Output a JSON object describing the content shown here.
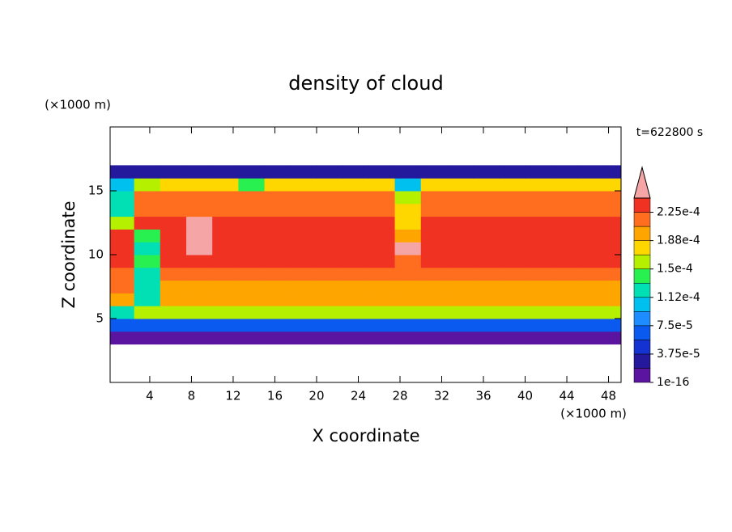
{
  "chart_data": {
    "type": "contour",
    "title": "density of cloud",
    "xlabel": "X coordinate",
    "ylabel": "Z coordinate",
    "xunit": "(×1000 m)",
    "yunit": "(×1000 m)",
    "annotation": "t=622800 s",
    "xlim": [
      0.2,
      49.2
    ],
    "ylim": [
      0,
      20
    ],
    "xticks": [
      4,
      8,
      12,
      16,
      20,
      24,
      28,
      32,
      36,
      40,
      44,
      48
    ],
    "yticks": [
      5,
      10,
      15
    ],
    "x": [
      1.25,
      3.75,
      6.25,
      8.75,
      11.25,
      13.75,
      16.25,
      18.75,
      21.25,
      23.75,
      26.25,
      28.75,
      31.25,
      33.75,
      36.25,
      38.75,
      41.25,
      43.75,
      46.25,
      48.75
    ],
    "z": [
      3.5,
      4.5,
      5.5,
      6.5,
      7.5,
      8.5,
      9.5,
      10.5,
      11.5,
      12.5,
      13.5,
      14.5,
      15.5,
      16.5
    ],
    "values": [
      [
        1e-05,
        1e-05,
        1e-05,
        1e-05,
        1e-05,
        1e-05,
        1e-05,
        1e-05,
        1e-05,
        1e-05,
        1e-05,
        1e-05,
        1e-05,
        1e-05,
        1e-05,
        1e-05,
        1e-05,
        1e-05,
        1e-05,
        1e-05
      ],
      [
        6e-05,
        6e-05,
        6e-05,
        6e-05,
        6e-05,
        6e-05,
        6e-05,
        6e-05,
        6e-05,
        6e-05,
        6e-05,
        6e-05,
        6e-05,
        6e-05,
        6e-05,
        6e-05,
        6e-05,
        6e-05,
        6e-05,
        6e-05
      ],
      [
        0.00013,
        0.000155,
        0.000155,
        0.000155,
        0.000155,
        0.000155,
        0.000155,
        0.000155,
        0.000155,
        0.000155,
        0.000155,
        0.000155,
        0.000155,
        0.000155,
        0.000155,
        0.000155,
        0.000155,
        0.000155,
        0.000155,
        0.000155
      ],
      [
        0.00019,
        0.00013,
        0.00019,
        0.00019,
        0.00019,
        0.00019,
        0.00019,
        0.00019,
        0.00019,
        0.00019,
        0.00019,
        0.00019,
        0.00019,
        0.00019,
        0.00019,
        0.00019,
        0.00019,
        0.00019,
        0.00019,
        0.00019
      ],
      [
        0.00021,
        0.00012,
        0.0002,
        0.0002,
        0.0002,
        0.0002,
        0.0002,
        0.0002,
        0.0002,
        0.0002,
        0.0002,
        0.0002,
        0.0002,
        0.0002,
        0.0002,
        0.0002,
        0.0002,
        0.0002,
        0.0002,
        0.0002
      ],
      [
        0.00022,
        0.00013,
        0.00021,
        0.00021,
        0.00021,
        0.00021,
        0.00021,
        0.00021,
        0.00021,
        0.00021,
        0.00021,
        0.00021,
        0.00021,
        0.00021,
        0.00021,
        0.00021,
        0.00021,
        0.00021,
        0.00021,
        0.00021
      ],
      [
        0.00023,
        0.00014,
        0.00023,
        0.00023,
        0.00023,
        0.00023,
        0.00023,
        0.00023,
        0.00023,
        0.00023,
        0.00023,
        0.00021,
        0.00023,
        0.00023,
        0.00023,
        0.00023,
        0.00023,
        0.00023,
        0.00023,
        0.00023
      ],
      [
        0.00023,
        0.00013,
        0.00023,
        0.00025,
        0.00023,
        0.00023,
        0.00023,
        0.00023,
        0.00023,
        0.00023,
        0.00023,
        0.00025,
        0.00023,
        0.00023,
        0.00023,
        0.00023,
        0.00023,
        0.00023,
        0.00023,
        0.00023
      ],
      [
        0.00023,
        0.00014,
        0.00023,
        0.00025,
        0.00023,
        0.00023,
        0.00023,
        0.00023,
        0.00023,
        0.00023,
        0.00023,
        0.0002,
        0.00023,
        0.00023,
        0.00023,
        0.00023,
        0.00023,
        0.00023,
        0.00023,
        0.00023
      ],
      [
        0.00015,
        0.00023,
        0.00024,
        0.00025,
        0.00023,
        0.00023,
        0.00023,
        0.00023,
        0.00023,
        0.00023,
        0.00023,
        0.00017,
        0.00023,
        0.00023,
        0.00023,
        0.00023,
        0.00023,
        0.00023,
        0.00023,
        0.00023
      ],
      [
        0.00013,
        0.00022,
        0.00022,
        0.00022,
        0.00022,
        0.00022,
        0.00022,
        0.00022,
        0.00022,
        0.00022,
        0.00022,
        0.00018,
        0.00022,
        0.00022,
        0.00022,
        0.00022,
        0.00022,
        0.00022,
        0.00022,
        0.00022
      ],
      [
        0.00012,
        0.00021,
        0.00021,
        0.00021,
        0.00021,
        0.00021,
        0.00021,
        0.00021,
        0.00021,
        0.00021,
        0.00021,
        0.00015,
        0.00021,
        0.00021,
        0.00021,
        0.00021,
        0.00021,
        0.00021,
        0.00021,
        0.00021
      ],
      [
        0.00011,
        0.00016,
        0.00017,
        0.00017,
        0.00017,
        0.00014,
        0.00017,
        0.00017,
        0.00017,
        0.00017,
        0.00017,
        0.00011,
        0.00017,
        0.00017,
        0.00017,
        0.00017,
        0.00017,
        0.00017,
        0.00017,
        0.00017
      ],
      [
        3e-05,
        3e-05,
        3e-05,
        3e-05,
        3e-05,
        3e-05,
        3e-05,
        3e-05,
        3e-05,
        3e-05,
        3e-05,
        3e-05,
        3e-05,
        3e-05,
        3e-05,
        3e-05,
        3e-05,
        3e-05,
        3e-05,
        3e-05
      ]
    ],
    "levels": [
      1e-16,
      1.875e-05,
      3.75e-05,
      5.625e-05,
      7.5e-05,
      9.375e-05,
      0.0001125,
      0.00013125,
      0.00015,
      0.00016875,
      0.0001875,
      0.00020625,
      0.000225,
      0.00024375
    ],
    "colors": [
      "#5a14a0",
      "#24189c",
      "#1432d2",
      "#0a5af0",
      "#1e8cff",
      "#00c0f0",
      "#00e0b4",
      "#28f050",
      "#b4f000",
      "#ffd700",
      "#ffa500",
      "#ff6e1e",
      "#f03223"
    ],
    "over_color": "#f5a5a5",
    "colorbar_ticks": [
      1e-16,
      {
        "value": 3.75e-05,
        "label": "3.75e-5"
      },
      {
        "value": 7.5e-05,
        "label": "7.5e-5"
      },
      {
        "value": 0.0001125,
        "label": "1.12e-4"
      },
      {
        "value": 0.00015,
        "label": "1.5e-4"
      },
      {
        "value": 0.0001875,
        "label": "1.88e-4"
      },
      {
        "value": 0.000225,
        "label": "2.25e-4"
      }
    ]
  }
}
